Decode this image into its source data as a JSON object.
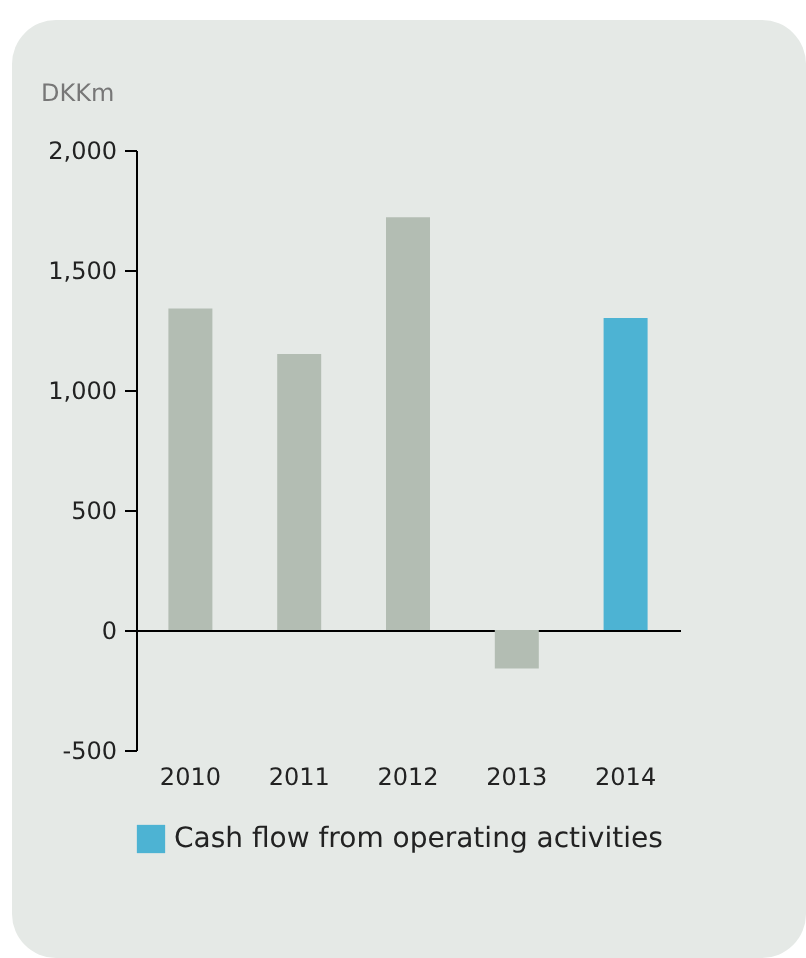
{
  "chart_data": {
    "type": "bar",
    "ylabel": "DKKm",
    "categories": [
      "2010",
      "2011",
      "2012",
      "2013",
      "2014"
    ],
    "series": [
      {
        "name": "Cash flow from operating activities",
        "color": "#4db3d3",
        "colors": [
          "#b3bdb3",
          "#b3bdb3",
          "#b3bdb3",
          "#b3bdb3",
          "#4db3d3"
        ],
        "values": [
          1340,
          1150,
          1720,
          -160,
          1300
        ]
      }
    ],
    "ylim": [
      -500,
      2000
    ],
    "yticks": [
      {
        "value": -500,
        "label": "-500"
      },
      0,
      500,
      {
        "value": 1000,
        "label": "1,000"
      },
      {
        "value": 1500,
        "label": "1,500"
      },
      {
        "value": 2000,
        "label": "2,000"
      }
    ],
    "legend": "bottom"
  }
}
